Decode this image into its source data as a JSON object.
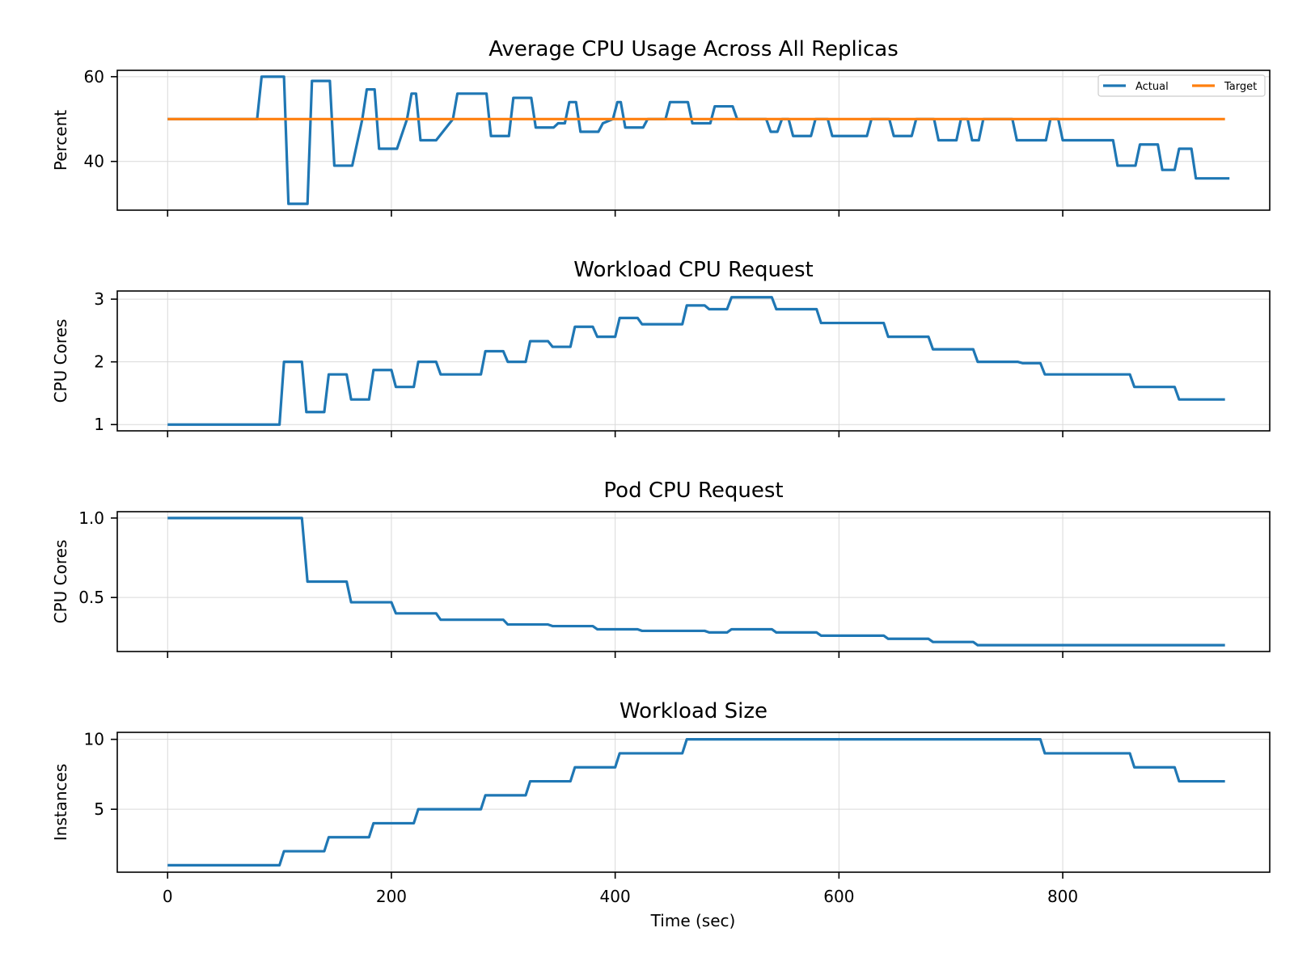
{
  "colors": {
    "actual": "#1f77b4",
    "target": "#ff7f0e"
  },
  "xlabel": "Time (sec)",
  "chart_data": [
    {
      "type": "line",
      "title": "Average CPU Usage Across All Replicas",
      "ylabel": "Percent",
      "xlim": [
        -45,
        985
      ],
      "ylim": [
        28.5,
        61.5
      ],
      "xticks": [
        0,
        200,
        400,
        600,
        800
      ],
      "yticks": [
        40,
        60
      ],
      "show_xtick_labels": false,
      "legend": {
        "placement": "top-right",
        "columns": 2
      },
      "series": [
        {
          "name": "Actual",
          "color": "#1f77b4",
          "x": [
            0,
            80,
            84,
            100,
            104,
            108,
            125,
            129,
            145,
            149,
            165,
            174,
            178,
            185,
            189,
            205,
            214,
            218,
            222,
            226,
            240,
            255,
            259,
            285,
            289,
            305,
            309,
            325,
            329,
            345,
            349,
            355,
            359,
            365,
            369,
            385,
            389,
            398,
            402,
            405,
            409,
            425,
            429,
            445,
            449,
            465,
            469,
            485,
            489,
            505,
            509,
            535,
            539,
            545,
            549,
            555,
            559,
            575,
            579,
            582,
            586,
            590,
            594,
            625,
            629,
            645,
            649,
            665,
            669,
            685,
            689,
            705,
            709,
            715,
            719,
            725,
            729,
            755,
            759,
            785,
            789,
            792,
            796,
            800,
            804,
            845,
            849,
            865,
            869,
            885,
            889,
            900,
            904,
            915,
            919,
            945,
            949
          ],
          "y": [
            50,
            50,
            60,
            60,
            60,
            30,
            30,
            59,
            59,
            39,
            39,
            50,
            57,
            57,
            43,
            43,
            50,
            56,
            56,
            45,
            45,
            50,
            56,
            56,
            46,
            46,
            55,
            55,
            48,
            48,
            49,
            49,
            54,
            54,
            47,
            47,
            49,
            50,
            54,
            54,
            48,
            48,
            50,
            50,
            54,
            54,
            49,
            49,
            53,
            53,
            50,
            50,
            47,
            47,
            50,
            50,
            46,
            46,
            50,
            50,
            50,
            50,
            46,
            46,
            50,
            50,
            46,
            46,
            50,
            50,
            45,
            45,
            50,
            50,
            45,
            45,
            50,
            50,
            45,
            45,
            50,
            50,
            50,
            45,
            45,
            45,
            39,
            39,
            44,
            44,
            38,
            38,
            43,
            43,
            36,
            36,
            36
          ]
        },
        {
          "name": "Target",
          "color": "#ff7f0e",
          "x": [
            0,
            945
          ],
          "y": [
            50,
            50
          ]
        }
      ]
    },
    {
      "type": "line",
      "title": "Workload CPU Request",
      "ylabel": "CPU Cores",
      "xlim": [
        -45,
        985
      ],
      "ylim": [
        0.9,
        3.13
      ],
      "xticks": [
        0,
        200,
        400,
        600,
        800
      ],
      "yticks": [
        1,
        2,
        3
      ],
      "show_xtick_labels": false,
      "series": [
        {
          "color": "#1f77b4",
          "x": [
            0,
            100,
            104,
            120,
            124,
            140,
            144,
            160,
            164,
            180,
            184,
            200,
            204,
            220,
            224,
            240,
            244,
            280,
            284,
            300,
            304,
            320,
            324,
            340,
            344,
            360,
            364,
            380,
            384,
            400,
            404,
            420,
            424,
            460,
            464,
            480,
            484,
            500,
            504,
            540,
            544,
            580,
            584,
            640,
            644,
            680,
            684,
            720,
            724,
            760,
            764,
            780,
            784,
            860,
            864,
            900,
            904,
            945
          ],
          "y": [
            1.0,
            1.0,
            2.0,
            2.0,
            1.2,
            1.2,
            1.8,
            1.8,
            1.4,
            1.4,
            1.87,
            1.87,
            1.6,
            1.6,
            2.0,
            2.0,
            1.8,
            1.8,
            2.17,
            2.17,
            2.0,
            2.0,
            2.33,
            2.33,
            2.24,
            2.24,
            2.56,
            2.56,
            2.4,
            2.4,
            2.7,
            2.7,
            2.6,
            2.6,
            2.9,
            2.9,
            2.84,
            2.84,
            3.03,
            3.03,
            2.84,
            2.84,
            2.62,
            2.62,
            2.4,
            2.4,
            2.2,
            2.2,
            2.0,
            2.0,
            1.98,
            1.98,
            1.8,
            1.8,
            1.6,
            1.6,
            1.4,
            1.4
          ]
        }
      ]
    },
    {
      "type": "line",
      "title": "Pod CPU Request",
      "ylabel": "CPU Cores",
      "xlim": [
        -45,
        985
      ],
      "ylim": [
        0.16,
        1.04
      ],
      "xticks": [
        0,
        200,
        400,
        600,
        800
      ],
      "yticks": [
        0.5,
        1.0
      ],
      "ytick_labels": [
        "0.5",
        "1.0"
      ],
      "show_xtick_labels": false,
      "series": [
        {
          "color": "#1f77b4",
          "x": [
            0,
            120,
            125,
            160,
            164,
            200,
            204,
            240,
            244,
            300,
            304,
            340,
            344,
            380,
            384,
            420,
            424,
            480,
            484,
            500,
            504,
            540,
            544,
            580,
            584,
            640,
            644,
            680,
            684,
            720,
            724,
            760,
            764,
            945
          ],
          "y": [
            1.0,
            1.0,
            0.6,
            0.6,
            0.47,
            0.47,
            0.4,
            0.4,
            0.36,
            0.36,
            0.33,
            0.33,
            0.32,
            0.32,
            0.3,
            0.3,
            0.29,
            0.29,
            0.28,
            0.28,
            0.3,
            0.3,
            0.28,
            0.28,
            0.26,
            0.26,
            0.24,
            0.24,
            0.22,
            0.22,
            0.2,
            0.2,
            0.2,
            0.2
          ]
        }
      ]
    },
    {
      "type": "line",
      "title": "Workload Size",
      "ylabel": "Instances",
      "xlim": [
        -45,
        985
      ],
      "ylim": [
        0.5,
        10.5
      ],
      "xticks": [
        0,
        200,
        400,
        600,
        800
      ],
      "xtick_labels": [
        "0",
        "200",
        "400",
        "600",
        "800"
      ],
      "yticks": [
        5,
        10
      ],
      "show_xtick_labels": true,
      "series": [
        {
          "color": "#1f77b4",
          "x": [
            0,
            100,
            104,
            140,
            144,
            180,
            184,
            220,
            224,
            280,
            284,
            320,
            324,
            360,
            364,
            400,
            404,
            460,
            464,
            780,
            784,
            860,
            864,
            900,
            904,
            945
          ],
          "y": [
            1,
            1,
            2,
            2,
            3,
            3,
            4,
            4,
            5,
            5,
            6,
            6,
            7,
            7,
            8,
            8,
            9,
            9,
            10,
            10,
            9,
            9,
            8,
            8,
            7,
            7
          ]
        }
      ]
    }
  ]
}
